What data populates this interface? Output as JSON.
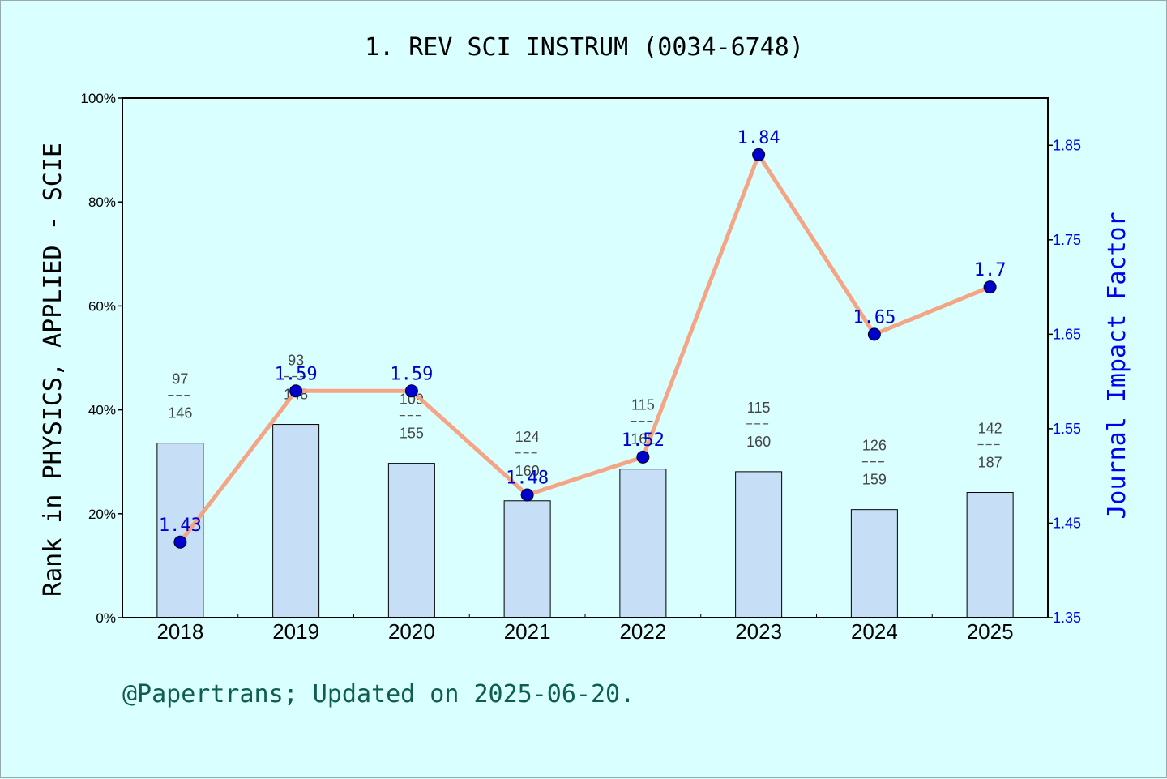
{
  "chart_data": {
    "type": "bar",
    "title": "1. REV SCI INSTRUM (0034-6748)",
    "categories": [
      "2018",
      "2019",
      "2020",
      "2021",
      "2022",
      "2023",
      "2024",
      "2025"
    ],
    "ylabel_left": "Rank in PHYSICS, APPLIED - SCIE",
    "ylabel_right": "Journal Impact Factor",
    "ylim_left": [
      0,
      100
    ],
    "ylim_right": [
      1.35,
      1.9
    ],
    "left_ticks": [
      "0%",
      "20%",
      "40%",
      "60%",
      "80%",
      "100%"
    ],
    "right_ticks": [
      "1.35",
      "1.45",
      "1.55",
      "1.65",
      "1.75",
      "1.85"
    ],
    "series": [
      {
        "kind": "bar",
        "rank": [
          97,
          93,
          109,
          124,
          115,
          115,
          126,
          142
        ],
        "total": [
          146,
          148,
          155,
          160,
          161,
          160,
          159,
          187
        ],
        "values_percent": [
          33.6,
          37.2,
          29.7,
          22.5,
          28.6,
          28.1,
          20.8,
          24.1
        ],
        "color": "#c6dff6"
      },
      {
        "kind": "line",
        "values": [
          1.43,
          1.59,
          1.59,
          1.48,
          1.52,
          1.84,
          1.65,
          1.7
        ],
        "labels": [
          "1.43",
          "1.59",
          "1.59",
          "1.48",
          "1.52",
          "1.84",
          "1.65",
          "1.7"
        ],
        "line_color": "#f5a07f",
        "marker_color": "#0000cc"
      }
    ],
    "grid": false
  },
  "footer": "@Papertrans; Updated on 2025-06-20."
}
